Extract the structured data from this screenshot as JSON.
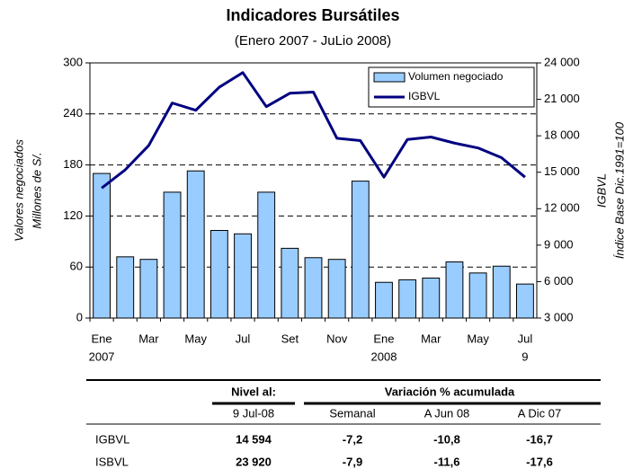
{
  "chart_data": {
    "type": "bar_line",
    "title": "Indicadores Bursátiles",
    "subtitle": "(Enero 2007 - JuLio 2008)",
    "ylabel": [
      "Valores negociados",
      "Millones de S/."
    ],
    "y2label": [
      "IGBVL",
      "Índice Base Dic.1991=100"
    ],
    "categories": [
      "Ene",
      null,
      "Mar",
      null,
      "May",
      null,
      "Jul",
      null,
      "Set",
      null,
      "Nov",
      null,
      "Ene",
      null,
      "Mar",
      null,
      "May",
      null,
      "Jul"
    ],
    "category_sublabels": [
      "2007",
      null,
      null,
      null,
      null,
      null,
      null,
      null,
      null,
      null,
      null,
      null,
      "2008",
      null,
      null,
      null,
      null,
      null,
      "9"
    ],
    "series": [
      {
        "name": "Volumen negociado",
        "type": "bar",
        "color": "#99ccff",
        "values": [
          170,
          72,
          69,
          148,
          173,
          103,
          99,
          148,
          82,
          71,
          69,
          161,
          42,
          45,
          47,
          66,
          53,
          61,
          40
        ]
      },
      {
        "name": "IGBVL",
        "type": "line",
        "axis": "y2",
        "color": "#000080",
        "values": [
          13700,
          15200,
          17200,
          20700,
          20100,
          22000,
          23200,
          20400,
          21500,
          21600,
          17800,
          17600,
          14600,
          17700,
          17900,
          17400,
          17000,
          16200,
          14594
        ]
      }
    ],
    "ylim": [
      0,
      300
    ],
    "yticks": [
      0,
      60,
      120,
      180,
      240,
      300
    ],
    "y2lim": [
      3000,
      24000
    ],
    "y2ticks": [
      {
        "value": 3000,
        "label": "3 000"
      },
      {
        "value": 6000,
        "label": "6 000"
      },
      {
        "value": 9000,
        "label": "9 000"
      },
      {
        "value": 12000,
        "label": "12 000"
      },
      {
        "value": 15000,
        "label": "15 000"
      },
      {
        "value": 18000,
        "label": "18 000"
      },
      {
        "value": 21000,
        "label": "21 000"
      },
      {
        "value": 24000,
        "label": "24 000"
      }
    ],
    "grid": true,
    "legend": "upper right"
  },
  "table": {
    "header": [
      "Nivel al:",
      "Variación % acumulada"
    ],
    "subheader": [
      "9 Jul-08",
      "Semanal",
      "A Jun 08",
      "A Dic 07"
    ],
    "rows": [
      [
        "IGBVL",
        "14 594",
        "-7,2",
        "-10,8",
        "-16,7"
      ],
      [
        "ISBVL",
        "23 920",
        "-7,9",
        "-11,6",
        "-17,6"
      ]
    ]
  }
}
